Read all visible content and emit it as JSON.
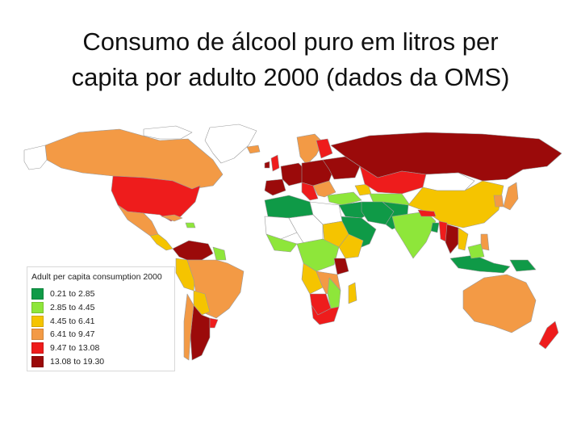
{
  "title": {
    "line1": "Consumo de álcool puro em litros per",
    "line2": "capita por adulto 2000 (dados da OMS)"
  },
  "legend": {
    "title": "Adult per capita consumption 2000",
    "items": [
      {
        "label": "0.21 to 2.85",
        "color": "#0f9a47"
      },
      {
        "label": "2.85 to 4.45",
        "color": "#8ee63a"
      },
      {
        "label": "4.45 to 6.41",
        "color": "#f5c400"
      },
      {
        "label": "6.41 to 9.47",
        "color": "#f39a45"
      },
      {
        "label": "9.47 to 13.08",
        "color": "#ee1c1c"
      },
      {
        "label": "13.08 to 19.30",
        "color": "#9b0a0a"
      }
    ]
  },
  "colors": {
    "no_data": "#ffffff",
    "border": "#9a9a9a"
  }
}
